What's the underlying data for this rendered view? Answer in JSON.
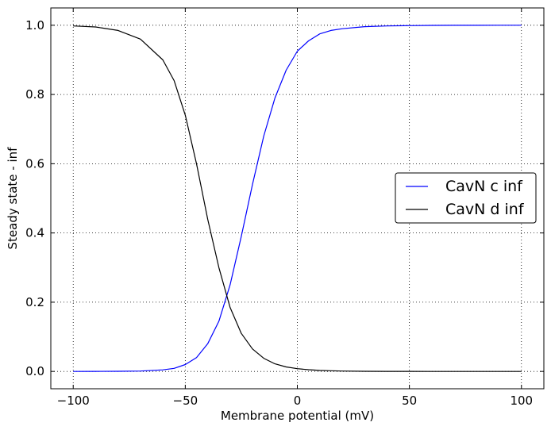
{
  "chart_data": {
    "type": "line",
    "title": "",
    "xlabel": "Membrane potential (mV)",
    "ylabel": "Steady state - inf",
    "xlim": [
      -110,
      110
    ],
    "ylim": [
      -0.05,
      1.05
    ],
    "xticks": [
      -100,
      -50,
      0,
      50,
      100
    ],
    "xtick_labels": [
      "−100",
      "−50",
      "0",
      "50",
      "100"
    ],
    "yticks": [
      0.0,
      0.2,
      0.4,
      0.6,
      0.8,
      1.0
    ],
    "ytick_labels": [
      "0.0",
      "0.2",
      "0.4",
      "0.6",
      "0.8",
      "1.0"
    ],
    "grid": true,
    "legend_position": "center-right",
    "x": [
      -100,
      -90,
      -80,
      -70,
      -60,
      -55,
      -50,
      -45,
      -40,
      -35,
      -30,
      -25,
      -20,
      -15,
      -10,
      -5,
      0,
      5,
      10,
      15,
      20,
      30,
      40,
      50,
      60,
      70,
      80,
      90,
      100
    ],
    "series": [
      {
        "name": "CavN c inf",
        "color": "#0000ff",
        "values": [
          0.0,
          0.0001,
          0.0004,
          0.0012,
          0.0045,
          0.009,
          0.02,
          0.04,
          0.08,
          0.145,
          0.25,
          0.39,
          0.54,
          0.68,
          0.79,
          0.87,
          0.925,
          0.955,
          0.975,
          0.985,
          0.99,
          0.996,
          0.998,
          0.999,
          0.9995,
          0.9998,
          0.9999,
          1.0,
          1.0
        ]
      },
      {
        "name": "CavN d inf",
        "color": "#000000",
        "values": [
          0.998,
          0.995,
          0.985,
          0.96,
          0.9,
          0.84,
          0.74,
          0.6,
          0.44,
          0.3,
          0.185,
          0.11,
          0.065,
          0.038,
          0.022,
          0.013,
          0.008,
          0.005,
          0.003,
          0.002,
          0.0012,
          0.0005,
          0.0002,
          0.0001,
          0.0,
          0.0,
          0.0,
          0.0,
          0.0
        ]
      }
    ]
  }
}
